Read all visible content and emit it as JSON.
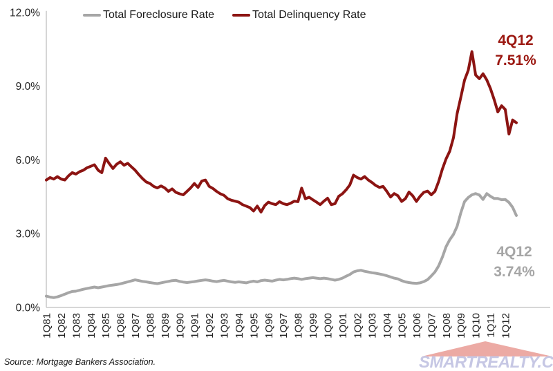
{
  "legend": {
    "items": [
      {
        "label": "Total Foreclosure Rate",
        "color": "#a6a6a6"
      },
      {
        "label": "Total Delinquency Rate",
        "color": "#8c1412"
      }
    ]
  },
  "annotations": {
    "delinquency": {
      "line1": "4Q12",
      "line2": "7.51%",
      "color": "#9b1710"
    },
    "foreclosure": {
      "line1": "4Q12",
      "line2": "3.74%",
      "color": "#a6a6a6"
    }
  },
  "source_note": "Source: Mortgage Bankers Association.",
  "watermark": {
    "text": "SMARTREALTY.CO",
    "roof_color": "#ecaaa4",
    "text_color": "#c6c7e4"
  },
  "chart_data": {
    "type": "line",
    "title": "",
    "xlabel": "",
    "ylabel": "",
    "x_unit": "quarter",
    "x_start": "1Q81",
    "x_end": "4Q12",
    "points_per_year": 4,
    "ylim": [
      0,
      12
    ],
    "grid": false,
    "legend_position": "top",
    "axis_color": "#bfbfbf",
    "tick_label_color": "#262626",
    "y_tick_values": [
      0,
      3,
      6,
      9,
      12
    ],
    "y_tick_labels": [
      "0.0%",
      "3.0%",
      "6.0%",
      "9.0%",
      "12.0%"
    ],
    "x_tick_labels": [
      "1Q81",
      "1Q82",
      "1Q83",
      "1Q84",
      "1Q85",
      "1Q86",
      "1Q87",
      "1Q88",
      "1Q89",
      "1Q90",
      "1Q91",
      "1Q92",
      "1Q93",
      "1Q94",
      "1Q95",
      "1Q96",
      "1Q97",
      "1Q98",
      "1Q99",
      "1Q00",
      "1Q01",
      "1Q02",
      "1Q03",
      "1Q04",
      "1Q05",
      "1Q06",
      "1Q07",
      "1Q08",
      "1Q09",
      "1Q10",
      "1Q11",
      "1Q12"
    ],
    "series": [
      {
        "name": "Total Foreclosure Rate",
        "color": "#a6a6a6",
        "final_label": "4Q12 3.74%",
        "values": [
          0.46,
          0.42,
          0.4,
          0.43,
          0.48,
          0.54,
          0.6,
          0.65,
          0.66,
          0.7,
          0.74,
          0.77,
          0.8,
          0.83,
          0.8,
          0.83,
          0.86,
          0.89,
          0.91,
          0.93,
          0.96,
          1.0,
          1.04,
          1.08,
          1.12,
          1.09,
          1.06,
          1.04,
          1.01,
          0.99,
          0.97,
          1.0,
          1.03,
          1.06,
          1.09,
          1.1,
          1.06,
          1.03,
          1.01,
          1.03,
          1.05,
          1.08,
          1.1,
          1.12,
          1.1,
          1.07,
          1.05,
          1.08,
          1.1,
          1.07,
          1.04,
          1.02,
          1.04,
          1.02,
          1.0,
          1.04,
          1.07,
          1.04,
          1.09,
          1.11,
          1.09,
          1.07,
          1.11,
          1.14,
          1.12,
          1.14,
          1.17,
          1.19,
          1.17,
          1.14,
          1.17,
          1.19,
          1.21,
          1.19,
          1.17,
          1.19,
          1.17,
          1.14,
          1.11,
          1.14,
          1.19,
          1.27,
          1.34,
          1.44,
          1.49,
          1.51,
          1.47,
          1.44,
          1.41,
          1.39,
          1.36,
          1.33,
          1.29,
          1.24,
          1.19,
          1.16,
          1.09,
          1.04,
          1.01,
          0.99,
          0.98,
          1.0,
          1.05,
          1.13,
          1.28,
          1.44,
          1.69,
          2.04,
          2.47,
          2.75,
          2.97,
          3.3,
          3.85,
          4.3,
          4.47,
          4.58,
          4.63,
          4.57,
          4.39,
          4.63,
          4.52,
          4.43,
          4.43,
          4.38,
          4.39,
          4.27,
          4.07,
          3.74
        ]
      },
      {
        "name": "Total Delinquency Rate",
        "color": "#8c1412",
        "final_label": "4Q12 7.51%",
        "values": [
          5.18,
          5.28,
          5.22,
          5.32,
          5.22,
          5.18,
          5.35,
          5.48,
          5.42,
          5.52,
          5.58,
          5.68,
          5.74,
          5.8,
          5.58,
          5.48,
          6.07,
          5.85,
          5.65,
          5.82,
          5.92,
          5.78,
          5.86,
          5.72,
          5.58,
          5.4,
          5.24,
          5.1,
          5.04,
          4.92,
          4.86,
          4.94,
          4.86,
          4.72,
          4.82,
          4.68,
          4.62,
          4.58,
          4.72,
          4.86,
          5.04,
          4.88,
          5.14,
          5.18,
          4.92,
          4.84,
          4.72,
          4.62,
          4.56,
          4.42,
          4.36,
          4.32,
          4.28,
          4.18,
          4.12,
          4.06,
          3.92,
          4.12,
          3.88,
          4.14,
          4.28,
          4.22,
          4.18,
          4.3,
          4.22,
          4.18,
          4.24,
          4.32,
          4.3,
          4.85,
          4.42,
          4.48,
          4.38,
          4.28,
          4.18,
          4.32,
          4.44,
          4.18,
          4.22,
          4.52,
          4.62,
          4.78,
          4.98,
          5.38,
          5.28,
          5.22,
          5.32,
          5.18,
          5.08,
          4.96,
          4.88,
          4.92,
          4.72,
          4.49,
          4.63,
          4.54,
          4.31,
          4.42,
          4.69,
          4.54,
          4.31,
          4.52,
          4.68,
          4.73,
          4.58,
          4.72,
          5.12,
          5.62,
          6.04,
          6.35,
          6.9,
          7.88,
          8.55,
          9.24,
          9.64,
          10.4,
          9.45,
          9.3,
          9.5,
          9.25,
          8.9,
          8.45,
          7.95,
          8.2,
          8.05,
          7.05,
          7.62,
          7.51
        ]
      }
    ]
  }
}
